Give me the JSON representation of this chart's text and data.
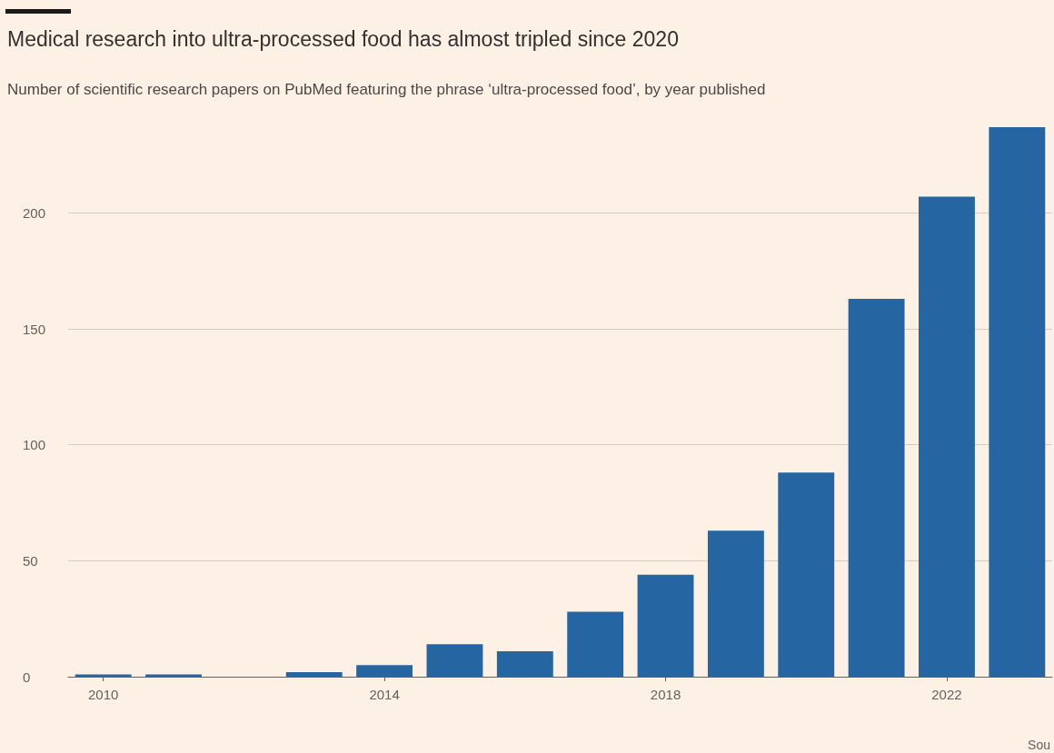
{
  "chart_data": {
    "type": "bar",
    "title": "Medical research into ultra-processed food has almost tripled since 2020",
    "subtitle": "Number of scientific research papers on PubMed featuring the phrase ‘ultra-processed food’, by year published",
    "categories": [
      "2010",
      null,
      null,
      null,
      "2014",
      null,
      null,
      null,
      "2018",
      null,
      null,
      null,
      "2022",
      null
    ],
    "values": [
      1,
      1,
      0,
      2,
      5,
      14,
      11,
      28,
      44,
      63,
      88,
      163,
      207,
      237
    ],
    "color": "#2565a1",
    "ylim": [
      0,
      237
    ],
    "yticks": [
      0,
      50,
      100,
      150,
      200
    ],
    "grid": "y",
    "annotations": [
      "Sou"
    ]
  }
}
